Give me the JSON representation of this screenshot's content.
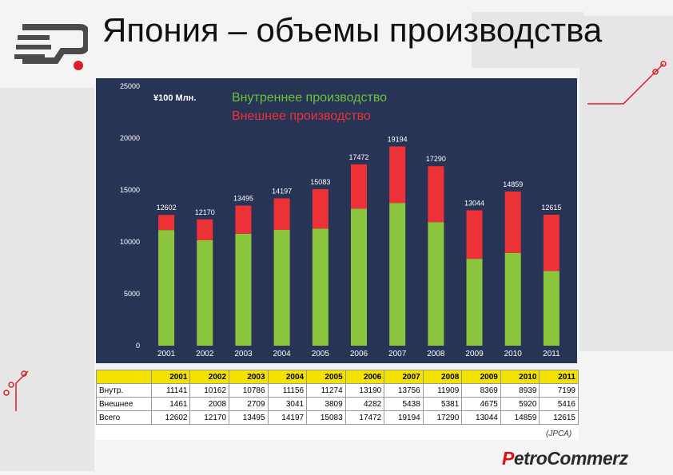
{
  "slide": {
    "title": "Япония – объемы производства",
    "source": "(JPCA)",
    "brand": {
      "initial": "P",
      "rest": "etroCommerz"
    }
  },
  "colors": {
    "panel": "#283456",
    "domestic": "#8cc63f",
    "overseas": "#ed3237",
    "unit_text": "#ffffff",
    "legend_domestic": "#6fc13b",
    "legend_overseas": "#ed3237"
  },
  "chart_data": {
    "type": "bar",
    "stacked": true,
    "unit_label": "¥100 Млн.",
    "categories": [
      "2001",
      "2002",
      "2003",
      "2004",
      "2005",
      "2006",
      "2007",
      "2008",
      "2009",
      "2010",
      "2011"
    ],
    "series": [
      {
        "name": "Внутреннее производство",
        "values": [
          11141,
          10162,
          10786,
          11156,
          11274,
          13190,
          13756,
          11909,
          8369,
          8939,
          7199
        ]
      },
      {
        "name": "Внешнее производство",
        "values": [
          1461,
          2008,
          2709,
          3041,
          3809,
          4282,
          5438,
          5381,
          4675,
          5920,
          5416
        ]
      }
    ],
    "totals": [
      12602,
      12170,
      13495,
      14197,
      15083,
      17472,
      19194,
      17290,
      13044,
      14859,
      12615
    ],
    "ylim": [
      0,
      25000
    ],
    "yticks": [
      0,
      5000,
      10000,
      15000,
      20000,
      25000
    ],
    "grid": false,
    "legend_position": "top"
  },
  "table": {
    "years": [
      "2001",
      "2002",
      "2003",
      "2004",
      "2005",
      "2006",
      "2007",
      "2008",
      "2009",
      "2010",
      "2011"
    ],
    "rows": [
      {
        "label": "Внутр.",
        "values": [
          "11141",
          "10162",
          "10786",
          "11156",
          "11274",
          "13190",
          "13756",
          "11909",
          "8369",
          "8939",
          "7199"
        ]
      },
      {
        "label": "Внешнее",
        "values": [
          "1461",
          "2008",
          "2709",
          "3041",
          "3809",
          "4282",
          "5438",
          "5381",
          "4675",
          "5920",
          "5416"
        ]
      },
      {
        "label": "Всего",
        "values": [
          "12602",
          "12170",
          "13495",
          "14197",
          "15083",
          "17472",
          "19194",
          "17290",
          "13044",
          "14859",
          "12615"
        ]
      }
    ]
  }
}
